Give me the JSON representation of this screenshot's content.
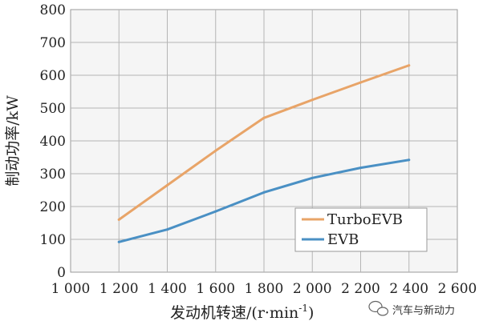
{
  "chart_data": {
    "type": "line",
    "xlabel": "发动机转速/(r·min",
    "xlabel_sup": "-1",
    "xlabel_close": ")",
    "ylabel": "制动功率/kW",
    "xlim": [
      1000,
      2600
    ],
    "ylim": [
      0,
      800
    ],
    "x_ticks": [
      "1 000",
      "1 200",
      "1 400",
      "1 600",
      "1 800",
      "2 000",
      "2 200",
      "2 400",
      "2 600"
    ],
    "y_ticks": [
      "0",
      "100",
      "200",
      "300",
      "400",
      "500",
      "600",
      "700",
      "800"
    ],
    "grid": true,
    "legend_position": "bottom-right",
    "series": [
      {
        "name": "TurboEVB",
        "color": "#e8a468",
        "x": [
          1200,
          1400,
          1600,
          1800,
          2000,
          2200,
          2400
        ],
        "y": [
          160,
          265,
          370,
          470,
          525,
          578,
          630
        ]
      },
      {
        "name": "EVB",
        "color": "#4a90c4",
        "x": [
          1200,
          1400,
          1600,
          1800,
          2000,
          2200,
          2400
        ],
        "y": [
          92,
          130,
          185,
          243,
          287,
          318,
          342
        ]
      }
    ]
  },
  "watermark": {
    "text": "汽车与新动力",
    "icon": "wechat-icon"
  }
}
